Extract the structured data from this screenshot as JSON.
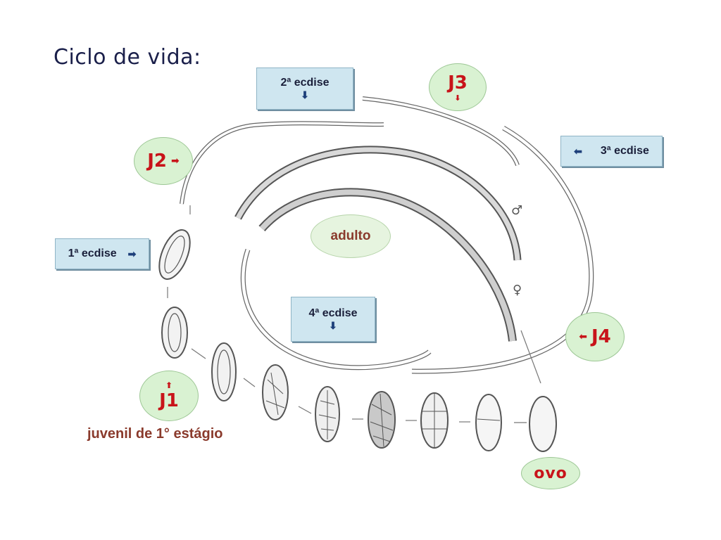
{
  "title": "Ciclo de vida:",
  "molts": {
    "first": {
      "label": "1ª ecdise",
      "arrow": "right-arrow-icon"
    },
    "second": {
      "label": "2ª ecdise",
      "arrow": "down-arrow-icon"
    },
    "third": {
      "label": "3ª ecdise",
      "arrow": "left-arrow-icon"
    },
    "fourth": {
      "label": "4ª ecdise",
      "arrow": "down-arrow-icon"
    }
  },
  "stages": {
    "j1": "J1",
    "j2": "J2",
    "j3": "J3",
    "j4": "J4",
    "adult": "adulto",
    "egg": "ovo"
  },
  "caption": "juvenil de 1° estágio",
  "symbols": {
    "male": "♂",
    "female": "♀"
  },
  "colors": {
    "stage_text": "#c8141a",
    "stage_fill": "#d9f2d2",
    "box_fill": "#cfe6f0",
    "caption_text": "#8a3a2c",
    "title_text": "#1a1f4a"
  }
}
